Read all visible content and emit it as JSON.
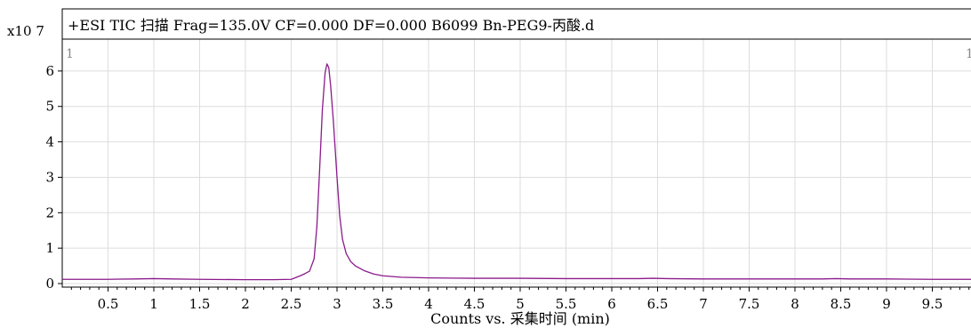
{
  "chart_data": {
    "type": "line",
    "title": "+ESI TIC 扫描 Frag=135.0V CF=0.000 DF=0.000 B6099 Bn-PEG9-丙酸.d",
    "xlabel": "Counts vs. 采集时间 (min)",
    "ylabel": "",
    "y_multiplier_label": "x10 7",
    "panel_marker": "1",
    "xlim": [
      0.0,
      10.0
    ],
    "ylim": [
      -0.1,
      6.9
    ],
    "xticks": [
      0.5,
      1,
      1.5,
      2,
      2.5,
      3,
      3.5,
      4,
      4.5,
      5,
      5.5,
      6,
      6.5,
      7,
      7.5,
      8,
      8.5,
      9,
      9.5
    ],
    "xtick_labels": [
      "0.5",
      "1",
      "1.5",
      "2",
      "2.5",
      "3",
      "3.5",
      "4",
      "4.5",
      "5",
      "5.5",
      "6",
      "6.5",
      "7",
      "7.5",
      "8",
      "8.5",
      "9",
      "9.5"
    ],
    "yticks": [
      0,
      1,
      2,
      3,
      4,
      5,
      6
    ],
    "ytick_labels": [
      "0",
      "1",
      "2",
      "3",
      "4",
      "5",
      "6"
    ],
    "grid": true,
    "legend": "none",
    "series": [
      {
        "color": "#8b1a8b",
        "x": [
          0.0,
          0.5,
          0.8,
          1.0,
          1.2,
          1.5,
          2.0,
          2.3,
          2.5,
          2.6,
          2.65,
          2.7,
          2.75,
          2.78,
          2.81,
          2.84,
          2.87,
          2.89,
          2.91,
          2.93,
          2.96,
          3.0,
          3.03,
          3.06,
          3.1,
          3.15,
          3.2,
          3.3,
          3.4,
          3.5,
          3.7,
          4.0,
          4.5,
          5.0,
          5.5,
          6.0,
          6.3,
          6.45,
          6.6,
          7.0,
          7.5,
          8.0,
          8.3,
          8.45,
          8.6,
          9.0,
          9.5,
          10.0
        ],
        "y": [
          0.12,
          0.12,
          0.13,
          0.14,
          0.13,
          0.12,
          0.11,
          0.11,
          0.12,
          0.22,
          0.28,
          0.35,
          0.7,
          1.6,
          3.2,
          4.9,
          5.95,
          6.2,
          6.1,
          5.6,
          4.6,
          3.0,
          1.9,
          1.25,
          0.85,
          0.62,
          0.5,
          0.36,
          0.27,
          0.22,
          0.18,
          0.16,
          0.15,
          0.15,
          0.14,
          0.14,
          0.14,
          0.15,
          0.14,
          0.13,
          0.13,
          0.13,
          0.13,
          0.14,
          0.13,
          0.13,
          0.12,
          0.12
        ]
      }
    ]
  }
}
